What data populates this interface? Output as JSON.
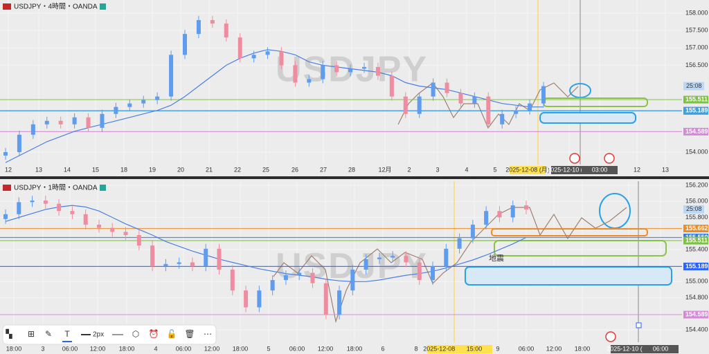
{
  "chart_data": [
    {
      "type": "candlestick",
      "title": "USDJPY・4時間・OANDA",
      "watermark": "USDJPY",
      "countdown": "25:08",
      "up_color": "#5e9cf0",
      "down_color": "#f08ca0",
      "ma_color": "#4a7fe0",
      "ylim": [
        153.642,
        158.378
      ],
      "yticks": [
        {
          "value": 154,
          "label": "154.000"
        },
        {
          "value": 156.5,
          "label": "156.500"
        },
        {
          "value": 157,
          "label": "157.000"
        },
        {
          "value": 157.5,
          "label": "157.500"
        },
        {
          "value": 158,
          "label": "158.000"
        }
      ],
      "categories": [
        "12",
        "13",
        "14",
        "15",
        "18",
        "19",
        "20",
        "21",
        "22",
        "25",
        "26",
        "27",
        "28",
        "12月",
        "2",
        "3",
        "4",
        "5",
        "2025-12-08 (月)",
        "2025-12-10 (水)",
        "03:00",
        "12",
        "13"
      ],
      "ohlc": [
        [
          153.9,
          154.12,
          153.78,
          154.0
        ],
        [
          154.0,
          154.62,
          153.88,
          154.5
        ],
        [
          154.5,
          154.92,
          154.38,
          154.8
        ],
        [
          154.8,
          155.02,
          154.68,
          154.9
        ],
        [
          154.9,
          155.02,
          154.68,
          154.8
        ],
        [
          154.8,
          155.12,
          154.68,
          155.0
        ],
        [
          155.0,
          155.12,
          154.58,
          154.7
        ],
        [
          154.7,
          155.22,
          154.58,
          155.1
        ],
        [
          155.1,
          155.42,
          154.98,
          155.3
        ],
        [
          155.3,
          155.52,
          155.18,
          155.4
        ],
        [
          155.4,
          155.62,
          155.28,
          155.5
        ],
        [
          155.5,
          155.72,
          155.38,
          155.6
        ],
        [
          155.6,
          156.92,
          155.48,
          156.8
        ],
        [
          156.8,
          157.52,
          156.68,
          157.4
        ],
        [
          157.4,
          157.92,
          157.28,
          157.8
        ],
        [
          157.8,
          157.92,
          157.58,
          157.7
        ],
        [
          157.7,
          157.82,
          157.18,
          157.3
        ],
        [
          157.3,
          157.42,
          156.58,
          156.7
        ],
        [
          156.7,
          156.92,
          156.58,
          156.8
        ],
        [
          156.8,
          157.02,
          156.68,
          156.9
        ],
        [
          156.9,
          157.02,
          156.38,
          156.5
        ],
        [
          156.5,
          156.62,
          155.88,
          156.0
        ],
        [
          156.0,
          156.22,
          155.88,
          156.1
        ],
        [
          156.1,
          156.62,
          155.98,
          156.5
        ],
        [
          156.5,
          156.62,
          156.18,
          156.3
        ],
        [
          156.3,
          156.52,
          156.18,
          156.4
        ],
        [
          156.4,
          156.57,
          156.28,
          156.45
        ],
        [
          156.45,
          156.57,
          156.08,
          156.2
        ],
        [
          156.2,
          156.32,
          155.48,
          155.6
        ],
        [
          155.6,
          155.72,
          154.98,
          155.1
        ],
        [
          155.1,
          155.72,
          154.98,
          155.6
        ],
        [
          155.6,
          156.12,
          155.48,
          156.0
        ],
        [
          156.0,
          156.12,
          155.58,
          155.7
        ],
        [
          155.7,
          155.82,
          155.28,
          155.4
        ],
        [
          155.4,
          155.72,
          155.28,
          155.6
        ],
        [
          155.6,
          155.72,
          154.68,
          154.8
        ],
        [
          154.8,
          155.22,
          154.68,
          155.1
        ],
        [
          155.1,
          155.32,
          154.98,
          155.2
        ],
        [
          155.2,
          155.52,
          155.08,
          155.4
        ],
        [
          155.4,
          156.02,
          155.28,
          155.9
        ]
      ],
      "ma": [
        153.7,
        153.9,
        154.1,
        154.3,
        154.45,
        154.6,
        154.7,
        154.8,
        154.9,
        155.0,
        155.1,
        155.2,
        155.35,
        155.6,
        155.9,
        156.2,
        156.5,
        156.7,
        156.85,
        156.95,
        156.9,
        156.8,
        156.6,
        156.5,
        156.45,
        156.4,
        156.35,
        156.3,
        156.2,
        156.0,
        155.9,
        155.85,
        155.8,
        155.7,
        155.6,
        155.5,
        155.4,
        155.35,
        155.3,
        155.3
      ],
      "levels": [
        {
          "value": 155.511,
          "label": "155.511",
          "color": "#7cc142"
        },
        {
          "value": 155.19,
          "label": "155.190",
          "color": "#2962ff"
        },
        {
          "value": 155.189,
          "label": "155.189",
          "color": "#3aa0e0"
        },
        {
          "value": 154.589,
          "label": "154.589",
          "color": "#d58ad8"
        }
      ]
    },
    {
      "type": "candlestick",
      "title": "USDJPY・1時間・OANDA",
      "watermark": "USDJPY",
      "countdown": "25:08",
      "annotation": "地震",
      "up_color": "#5e9cf0",
      "down_color": "#f08ca0",
      "ma_color": "#4a7fe0",
      "ylim": [
        154.245,
        156.252
      ],
      "yticks": [
        {
          "value": 154.4,
          "label": "154.400"
        },
        {
          "value": 154.8,
          "label": "154.800"
        },
        {
          "value": 155,
          "label": "155.000"
        },
        {
          "value": 155.4,
          "label": "155.400"
        },
        {
          "value": 155.8,
          "label": "155.800"
        },
        {
          "value": 156,
          "label": "156.000"
        },
        {
          "value": 156.2,
          "label": "156.200"
        }
      ],
      "categories": [
        "18:00",
        "3",
        "06:00",
        "12:00",
        "18:00",
        "4",
        "06:00",
        "12:00",
        "18:00",
        "5",
        "06:00",
        "12:00",
        "18:00",
        "6",
        "8",
        "2025-12-08 (月)",
        "15:00",
        "9",
        "06:00",
        "12:00",
        "18:00",
        "2025-12-10 (水)",
        "06:00"
      ],
      "ohlc": [
        [
          155.78,
          155.9,
          155.72,
          155.84
        ],
        [
          155.84,
          156.05,
          155.78,
          155.99
        ],
        [
          155.99,
          156.07,
          155.93,
          156.01
        ],
        [
          156.01,
          156.07,
          155.91,
          155.97
        ],
        [
          155.97,
          156.03,
          155.82,
          155.88
        ],
        [
          155.88,
          155.94,
          155.78,
          155.84
        ],
        [
          155.84,
          155.9,
          155.65,
          155.71
        ],
        [
          155.71,
          155.77,
          155.61,
          155.67
        ],
        [
          155.67,
          155.73,
          155.56,
          155.62
        ],
        [
          155.62,
          155.68,
          155.52,
          155.58
        ],
        [
          155.58,
          155.64,
          155.39,
          155.45
        ],
        [
          155.45,
          155.51,
          155.13,
          155.19
        ],
        [
          155.19,
          155.28,
          155.13,
          155.22
        ],
        [
          155.22,
          155.3,
          155.16,
          155.24
        ],
        [
          155.24,
          155.3,
          155.13,
          155.19
        ],
        [
          155.19,
          155.47,
          155.13,
          155.41
        ],
        [
          155.41,
          155.47,
          155.09,
          155.15
        ],
        [
          155.15,
          155.21,
          154.83,
          154.89
        ],
        [
          154.89,
          154.95,
          154.62,
          154.68
        ],
        [
          154.68,
          154.95,
          154.62,
          154.89
        ],
        [
          154.89,
          155.08,
          154.83,
          155.02
        ],
        [
          155.02,
          155.14,
          154.96,
          155.08
        ],
        [
          155.08,
          155.17,
          155.02,
          155.11
        ],
        [
          155.11,
          155.17,
          154.92,
          154.98
        ],
        [
          154.98,
          155.04,
          154.53,
          154.59
        ],
        [
          154.59,
          154.95,
          154.53,
          154.89
        ],
        [
          154.89,
          155.21,
          154.83,
          155.15
        ],
        [
          155.15,
          155.34,
          155.09,
          155.28
        ],
        [
          155.28,
          155.36,
          155.22,
          155.3
        ],
        [
          155.3,
          155.38,
          155.24,
          155.32
        ],
        [
          155.32,
          155.38,
          155.18,
          155.24
        ],
        [
          155.24,
          155.3,
          154.96,
          155.02
        ],
        [
          155.02,
          155.25,
          154.96,
          155.19
        ],
        [
          155.19,
          155.47,
          155.13,
          155.41
        ],
        [
          155.41,
          155.6,
          155.35,
          155.54
        ],
        [
          155.54,
          155.77,
          155.48,
          155.71
        ],
        [
          155.71,
          155.94,
          155.65,
          155.88
        ],
        [
          155.88,
          155.94,
          155.74,
          155.8
        ],
        [
          155.8,
          156.01,
          155.74,
          155.95
        ],
        [
          155.95,
          156.01,
          155.84,
          155.9
        ]
      ],
      "ma": [
        155.75,
        155.8,
        155.85,
        155.9,
        155.93,
        155.95,
        155.93,
        155.88,
        155.8,
        155.72,
        155.65,
        155.58,
        155.5,
        155.44,
        155.38,
        155.33,
        155.28,
        155.24,
        155.2,
        155.16,
        155.13,
        155.1,
        155.08,
        155.06,
        155.03,
        155.01,
        155.0,
        155.0,
        155.02,
        155.05,
        155.08,
        155.1,
        155.13,
        155.17,
        155.22,
        155.27,
        155.33,
        155.4,
        155.47,
        155.55
      ],
      "levels": [
        {
          "value": 155.662,
          "label": "155.662",
          "color": "#f08a24"
        },
        {
          "value": 155.55,
          "label": "155.550",
          "color": "#2f7fe0"
        },
        {
          "value": 155.511,
          "label": "155.511",
          "color": "#7cc142"
        },
        {
          "value": 155.189,
          "label": "155.189",
          "color": "#2962ff"
        },
        {
          "value": 154.589,
          "label": "154.589",
          "color": "#d58ad8"
        }
      ]
    }
  ],
  "toolbar": {
    "stroke_width": "2px"
  }
}
